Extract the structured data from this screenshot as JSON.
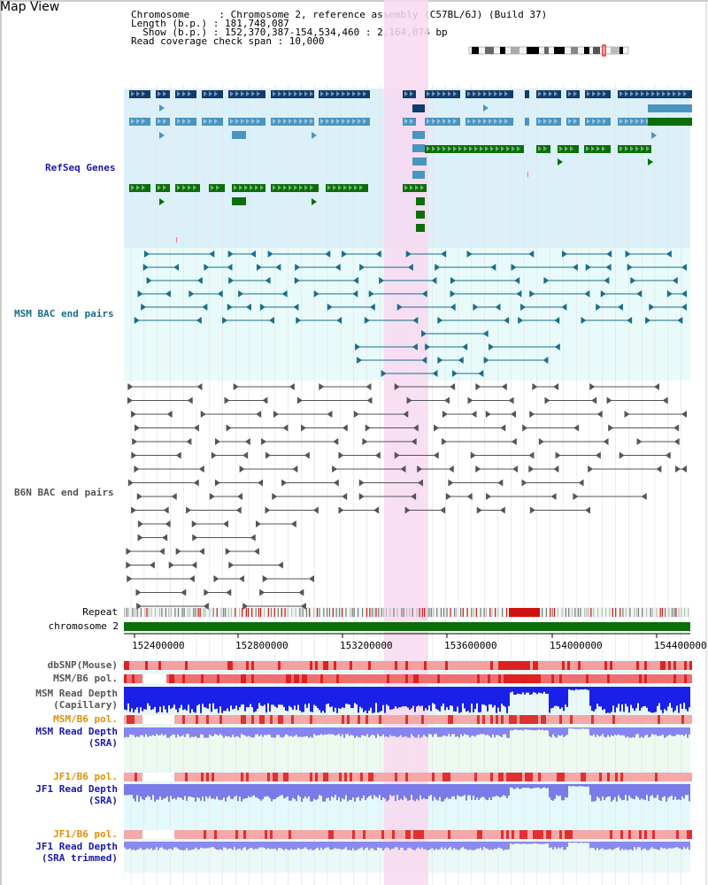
{
  "app": {
    "title": "Map View"
  },
  "header": {
    "lines": [
      "Chromosome     : Chromosome 2, reference assembly (C57BL/6J) (Build 37)",
      "Length (b.p.) : 181,748,087",
      "  Show (b.p.) : 152,370,387-154,534,460 : 2,164,074 bp",
      "Read coverage check span : 10,000"
    ]
  },
  "tracks": {
    "refseq": "RefSeq Genes",
    "msm_bac": "MSM BAC end pairs",
    "b6n_bac": "B6N BAC end pairs",
    "repeat": "Repeat",
    "chromosome": "chromosome 2",
    "dbsnp": "dbSNP(Mouse)",
    "msm_pol1": "MSM/B6 pol.",
    "msm_depth_cap_1": "MSM Read Depth",
    "msm_depth_cap_2": "(Capillary)",
    "msm_pol2": "MSM/B6 pol.",
    "msm_depth_sra_1": "MSM Read Depth",
    "msm_depth_sra_2": "(SRA)",
    "jf1_pol1": "JF1/B6 pol.",
    "jf1_depth_1": "JF1 Read Depth",
    "jf1_depth_2": "(SRA)",
    "jf1_pol2": "JF1/B6 pol.",
    "jf1_trim_1": "JF1 Read Depth",
    "jf1_trim_2": "(SRA trimmed)"
  },
  "axis": {
    "ticks": [
      "152400000",
      "152800000",
      "153200000",
      "153600000",
      "154000000",
      "154400000"
    ]
  },
  "colors": {
    "refseq_dark": "#0f3c6e",
    "refseq_light": "#4a94c0",
    "refseq_green": "#0b6e0b",
    "msm_bac": "#1a6e8c",
    "b6n_bac": "#555555",
    "chromosome": "#0b6e0b",
    "highlight": "#f8d9f0",
    "label_blue": "#1a1aaa",
    "label_gray": "#555555",
    "label_orange": "#e09000",
    "label_teal": "#1a6e8c"
  }
}
